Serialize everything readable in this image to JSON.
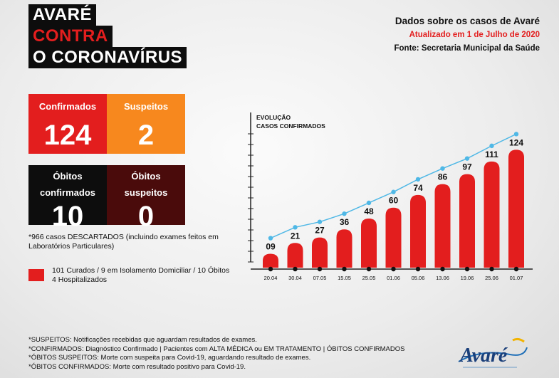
{
  "title": {
    "line1": "AVARÉ",
    "line2": "CONTRA",
    "line3": "O CORONAVÍRUS"
  },
  "header": {
    "heading": "Dados sobre os casos de Avaré",
    "updated": "Atualizado em 1 de Julho de 2020",
    "source": "Fonte: Secretaria Municipal da Saúde"
  },
  "cards": {
    "confirmados": {
      "label": "Confirmados",
      "value": "124"
    },
    "suspeitos": {
      "label": "Suspeitos",
      "value": "2"
    },
    "obitos_confirmados": {
      "label_line1": "Óbitos",
      "label_line2": "confirmados",
      "value": "10"
    },
    "obitos_suspeitos": {
      "label_line1": "Óbitos",
      "label_line2": "suspeitos",
      "value": "0"
    }
  },
  "descartados": "*966 casos DESCARTADOS (incluindo exames feitos em Laboratórios Particulares)",
  "legend": {
    "line1": "101 Curados / 9 em Isolamento Domiciliar / 10 Óbitos",
    "line2": "4 Hospitalizados"
  },
  "notes": [
    "*SUSPEITOS: Notificações recebidas que aguardam resultados de exames.",
    "*CONFIRMADOS: Diagnóstico Confirmado | Pacientes com ALTA MÉDICA ou EM TRATAMENTO | ÓBITOS CONFIRMADOS",
    "*ÓBITOS SUSPEITOS: Morte com suspeita para Covid-19, aguardando resultado de exames.",
    "*ÓBITOS CONFIRMADOS: Morte com resultado positivo para Covid-19."
  ],
  "logo": {
    "text": "Avaré"
  },
  "colors": {
    "accent_red": "#e31e1e",
    "orange": "#f7881e",
    "dark": "#0d0d0d",
    "maroon": "#4a0b0b",
    "line_blue": "#4fb8e6"
  },
  "chart_data": {
    "type": "bar",
    "title_line1": "EVOLUÇÃO",
    "title_line2": "CASOS CONFIRMADOS",
    "categories": [
      "20.04",
      "30.04",
      "07.05",
      "15.05",
      "25.05",
      "01.06",
      "05.06",
      "13.06",
      "19.06",
      "25.06",
      "01.07"
    ],
    "values": [
      9,
      21,
      27,
      36,
      48,
      60,
      74,
      86,
      97,
      111,
      124
    ],
    "labels": [
      "09",
      "21",
      "27",
      "36",
      "48",
      "60",
      "74",
      "86",
      "97",
      "111",
      "124"
    ],
    "overlay": "line",
    "xlabel": "",
    "ylabel": "",
    "ylim": [
      0,
      140
    ],
    "grid": false
  }
}
